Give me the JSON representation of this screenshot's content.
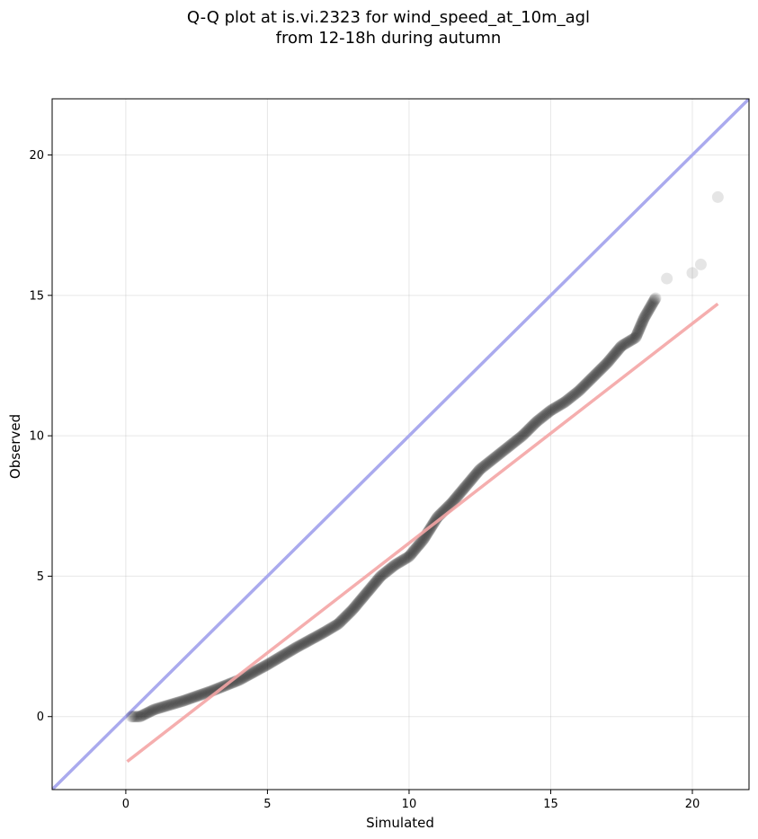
{
  "chart_data": {
    "type": "scatter",
    "title_line1": "Q-Q plot at is.vi.2323 for wind_speed_at_10m_agl",
    "title_line2": "from 12-18h during autumn",
    "xlabel": "Simulated",
    "ylabel": "Observed",
    "xlim": [
      -2.6,
      22.0
    ],
    "ylim": [
      -2.6,
      22.0
    ],
    "xticks": [
      0,
      5,
      10,
      15,
      20
    ],
    "yticks": [
      0,
      5,
      10,
      15,
      20
    ],
    "grid": true,
    "colors": {
      "points": "#000000",
      "identity_line": "#aaaaee",
      "fit_line": "#f4a5a5"
    },
    "identity_line": {
      "x": [
        -2.6,
        22.0
      ],
      "y": [
        -2.6,
        22.0
      ]
    },
    "fit_line": {
      "x": [
        0.05,
        20.9
      ],
      "y": [
        -1.6,
        14.7
      ]
    },
    "curve_points": [
      [
        0.2,
        0.0
      ],
      [
        0.5,
        0.0
      ],
      [
        1.0,
        0.25
      ],
      [
        2.0,
        0.55
      ],
      [
        3.0,
        0.9
      ],
      [
        4.0,
        1.3
      ],
      [
        5.0,
        1.85
      ],
      [
        6.0,
        2.45
      ],
      [
        7.0,
        3.0
      ],
      [
        7.5,
        3.3
      ],
      [
        8.0,
        3.8
      ],
      [
        8.5,
        4.4
      ],
      [
        9.0,
        5.0
      ],
      [
        9.5,
        5.4
      ],
      [
        10.0,
        5.7
      ],
      [
        10.5,
        6.3
      ],
      [
        11.0,
        7.1
      ],
      [
        11.5,
        7.6
      ],
      [
        12.0,
        8.2
      ],
      [
        12.5,
        8.8
      ],
      [
        13.0,
        9.2
      ],
      [
        13.5,
        9.6
      ],
      [
        14.0,
        10.0
      ],
      [
        14.5,
        10.5
      ],
      [
        15.0,
        10.9
      ],
      [
        15.5,
        11.2
      ],
      [
        16.0,
        11.6
      ],
      [
        16.5,
        12.1
      ],
      [
        17.0,
        12.6
      ],
      [
        17.5,
        13.2
      ],
      [
        18.0,
        13.5
      ],
      [
        18.3,
        14.2
      ],
      [
        18.7,
        14.9
      ]
    ],
    "outlier_points": [
      [
        19.1,
        15.6
      ],
      [
        20.0,
        15.8
      ],
      [
        20.3,
        16.1
      ],
      [
        20.9,
        18.5
      ]
    ]
  }
}
